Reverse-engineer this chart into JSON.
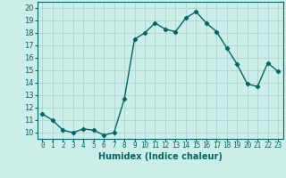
{
  "x": [
    0,
    1,
    2,
    3,
    4,
    5,
    6,
    7,
    8,
    9,
    10,
    11,
    12,
    13,
    14,
    15,
    16,
    17,
    18,
    19,
    20,
    21,
    22,
    23
  ],
  "y": [
    11.5,
    11.0,
    10.2,
    10.0,
    10.3,
    10.2,
    9.8,
    10.0,
    12.7,
    17.5,
    18.0,
    18.8,
    18.3,
    18.1,
    19.2,
    19.7,
    18.8,
    18.1,
    16.8,
    15.5,
    13.9,
    13.7,
    15.6,
    14.9
  ],
  "line_color": "#006666",
  "marker": "D",
  "marker_size": 2.2,
  "linewidth": 1.0,
  "xlabel": "Humidex (Indice chaleur)",
  "xlim": [
    -0.5,
    23.5
  ],
  "ylim": [
    9.5,
    20.5
  ],
  "yticks": [
    10,
    11,
    12,
    13,
    14,
    15,
    16,
    17,
    18,
    19,
    20
  ],
  "xtick_labels": [
    "0",
    "1",
    "2",
    "3",
    "4",
    "5",
    "6",
    "7",
    "8",
    "9",
    "10",
    "11",
    "12",
    "13",
    "14",
    "15",
    "16",
    "17",
    "18",
    "19",
    "20",
    "21",
    "22",
    "23"
  ],
  "bg_color": "#cceee8",
  "grid_color": "#aacccc",
  "fig_bg": "#cceee8",
  "spine_color": "#006666"
}
